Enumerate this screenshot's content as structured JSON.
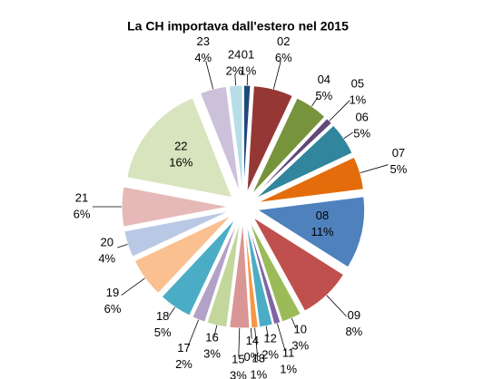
{
  "chart_data": {
    "type": "pie",
    "title": "La CH importava dall'estero nel 2015",
    "categories": [
      "01",
      "02",
      "04",
      "05",
      "06",
      "07",
      "08",
      "09",
      "10",
      "11",
      "12",
      "13",
      "14",
      "15",
      "16",
      "17",
      "18",
      "19",
      "20",
      "21",
      "22",
      "23",
      "24"
    ],
    "values": [
      1,
      6,
      5,
      1,
      5,
      5,
      11,
      8,
      3,
      1,
      2,
      1,
      0,
      3,
      3,
      2,
      5,
      6,
      4,
      6,
      16,
      4,
      2
    ],
    "value_labels": [
      "1%",
      "6%",
      "5%",
      "1%",
      "5%",
      "5%",
      "11%",
      "8%",
      "3%",
      "1%",
      "2%",
      "1%",
      "0%",
      "3%",
      "3%",
      "2%",
      "5%",
      "6%",
      "4%",
      "6%",
      "16%",
      "4%",
      "2%"
    ],
    "colors": [
      "#1f497d",
      "#953735",
      "#77933c",
      "#5f497a",
      "#31859c",
      "#e46c0a",
      "#4f81bd",
      "#c0504d",
      "#9bbb59",
      "#8064a2",
      "#4bacc6",
      "#f79646",
      "#4f81bd",
      "#d99694",
      "#c3d69b",
      "#b3a2c7",
      "#4bacc6",
      "#fac090",
      "#b9c9e5",
      "#e6b9b8",
      "#d7e4bd",
      "#ccc1da",
      "#b7dee8"
    ]
  }
}
